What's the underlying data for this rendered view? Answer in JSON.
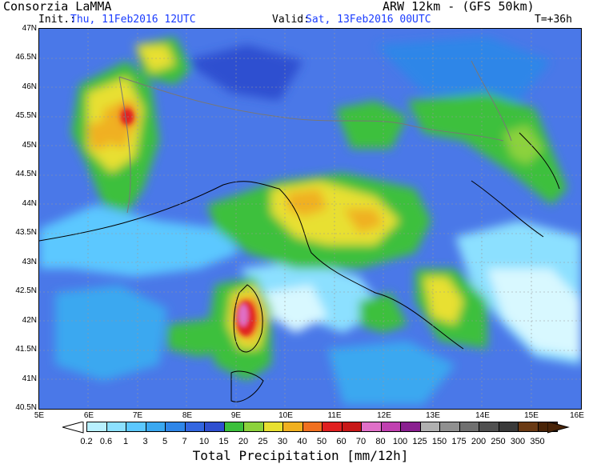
{
  "header": {
    "org": "Consorzia LaMMA",
    "model": "ARW 12km - (GFS 50km)",
    "init_label": "Init.:",
    "init_value": "Thu, 11Feb2016 12UTC",
    "valid_label": "Valid:",
    "valid_value": "Sat, 13Feb2016 00UTC",
    "lead": "T=+36h"
  },
  "axes": {
    "lat_labels": [
      "47N",
      "46.5N",
      "46N",
      "45.5N",
      "45N",
      "44.5N",
      "44N",
      "43.5N",
      "43N",
      "42.5N",
      "42N",
      "41.5N",
      "41N",
      "40.5N"
    ],
    "lon_labels": [
      "5E",
      "6E",
      "7E",
      "8E",
      "9E",
      "10E",
      "11E",
      "12E",
      "13E",
      "14E",
      "15E",
      "16E"
    ]
  },
  "legend": {
    "title": "Total Precipitation [mm/12h]",
    "values": [
      "0.2",
      "0.6",
      "1",
      "3",
      "5",
      "7",
      "10",
      "15",
      "20",
      "25",
      "30",
      "40",
      "50",
      "60",
      "70",
      "80",
      "100",
      "125",
      "150",
      "175",
      "200",
      "250",
      "300",
      "350"
    ],
    "colors": [
      "#b8f0ff",
      "#8ce0ff",
      "#5cc8ff",
      "#3aa8f0",
      "#2f86e8",
      "#3366e0",
      "#2f4fd0",
      "#3cc03c",
      "#8cd23c",
      "#e8e030",
      "#f0b020",
      "#f07020",
      "#e02020",
      "#c81818",
      "#e070c8",
      "#c040b0",
      "#8a2090",
      "#b0b0b0",
      "#909090",
      "#707070",
      "#505050",
      "#3a3a3a",
      "#6a3a14",
      "#4a2408"
    ]
  }
}
